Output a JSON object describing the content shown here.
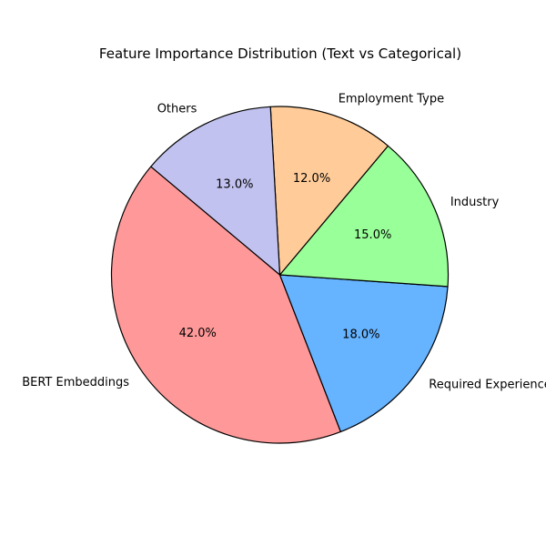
{
  "chart_data": {
    "type": "pie",
    "title": "Feature Importance Distribution (Text vs Categorical)",
    "categories": [
      "BERT Embeddings",
      "Required Experience",
      "Industry",
      "Employment Type",
      "Others"
    ],
    "values": [
      42.0,
      18.0,
      15.0,
      12.0,
      13.0
    ],
    "percent_labels": [
      "42.0%",
      "18.0%",
      "15.0%",
      "12.0%",
      "13.0%"
    ],
    "colors": [
      "#ff9999",
      "#66b3ff",
      "#99ff99",
      "#ffcc99",
      "#c2c2f0"
    ],
    "start_angle_deg": 140,
    "direction": "counterclockwise",
    "edge_color": "#000000"
  }
}
